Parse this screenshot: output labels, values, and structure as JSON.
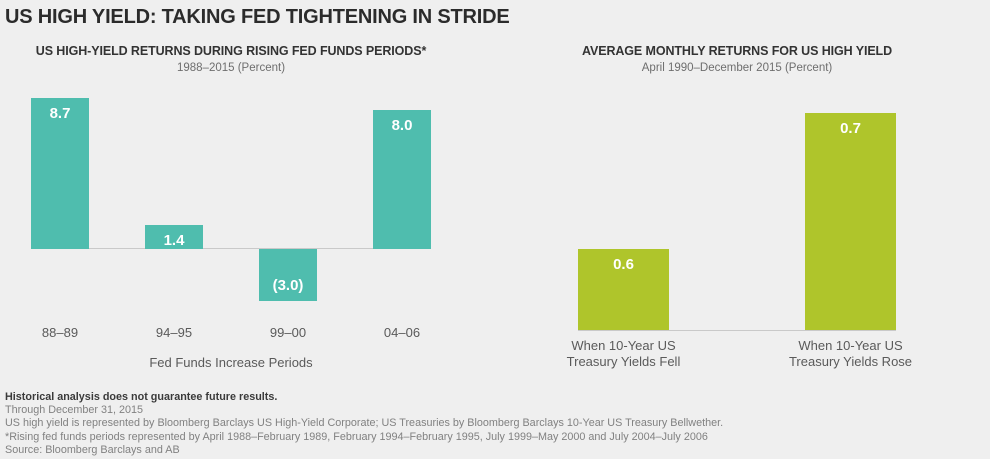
{
  "page": {
    "title": "US HIGH YIELD: TAKING FED TIGHTENING IN STRIDE",
    "background_color": "#EFEFEF"
  },
  "chart_data": [
    {
      "type": "bar",
      "title": "US HIGH-YIELD RETURNS DURING RISING FED FUNDS PERIODS*",
      "subtitle": "1988–2015 (Percent)",
      "categories": [
        "88–89",
        "94–95",
        "99–00",
        "04–06"
      ],
      "values": [
        8.7,
        1.4,
        -3.0,
        8.0
      ],
      "value_labels": [
        "8.7",
        "1.4",
        "(3.0)",
        "8.0"
      ],
      "xlabel": "Fed Funds Increase Periods",
      "ylabel": "",
      "ylim": [
        -3.0,
        8.7
      ],
      "zero_baseline": 0,
      "bar_color": "#4FBDAE",
      "label_color": "#FFFFFF",
      "grid": false,
      "legend": "none"
    },
    {
      "type": "bar",
      "title": "AVERAGE MONTHLY RETURNS FOR US HIGH YIELD",
      "subtitle": "April 1990–December 2015 (Percent)",
      "categories": [
        "When 10-Year US\nTreasury Yields Fell",
        "When 10-Year US\nTreasury Yields Rose"
      ],
      "values": [
        0.6,
        0.7
      ],
      "value_labels": [
        "0.6",
        "0.7"
      ],
      "xlabel": "",
      "ylabel": "",
      "ylim": [
        0.54,
        0.7
      ],
      "zero_baseline": 0.54,
      "bar_color": "#AFC52B",
      "label_color": "#FFFFFF",
      "grid": false,
      "legend": "none"
    }
  ],
  "footnotes": {
    "bold": "Historical analysis does not guarantee future results.",
    "lines": [
      "Through December 31, 2015",
      "US high yield is represented by Bloomberg Barclays US High-Yield Corporate; US Treasuries by Bloomberg Barclays 10-Year US Treasury Bellwether.",
      "*Rising fed funds periods represented by April 1988–February 1989, February 1994–February 1995, July 1999–May 2000 and July 2004–July 2006",
      "Source: Bloomberg Barclays and AB"
    ]
  },
  "colors": {
    "teal": "#4FBDAE",
    "lime": "#AFC52B",
    "baseline_gray": "#C9C9C9",
    "title_dark": "#2B2B2B",
    "text_gray": "#5A5A5A"
  }
}
